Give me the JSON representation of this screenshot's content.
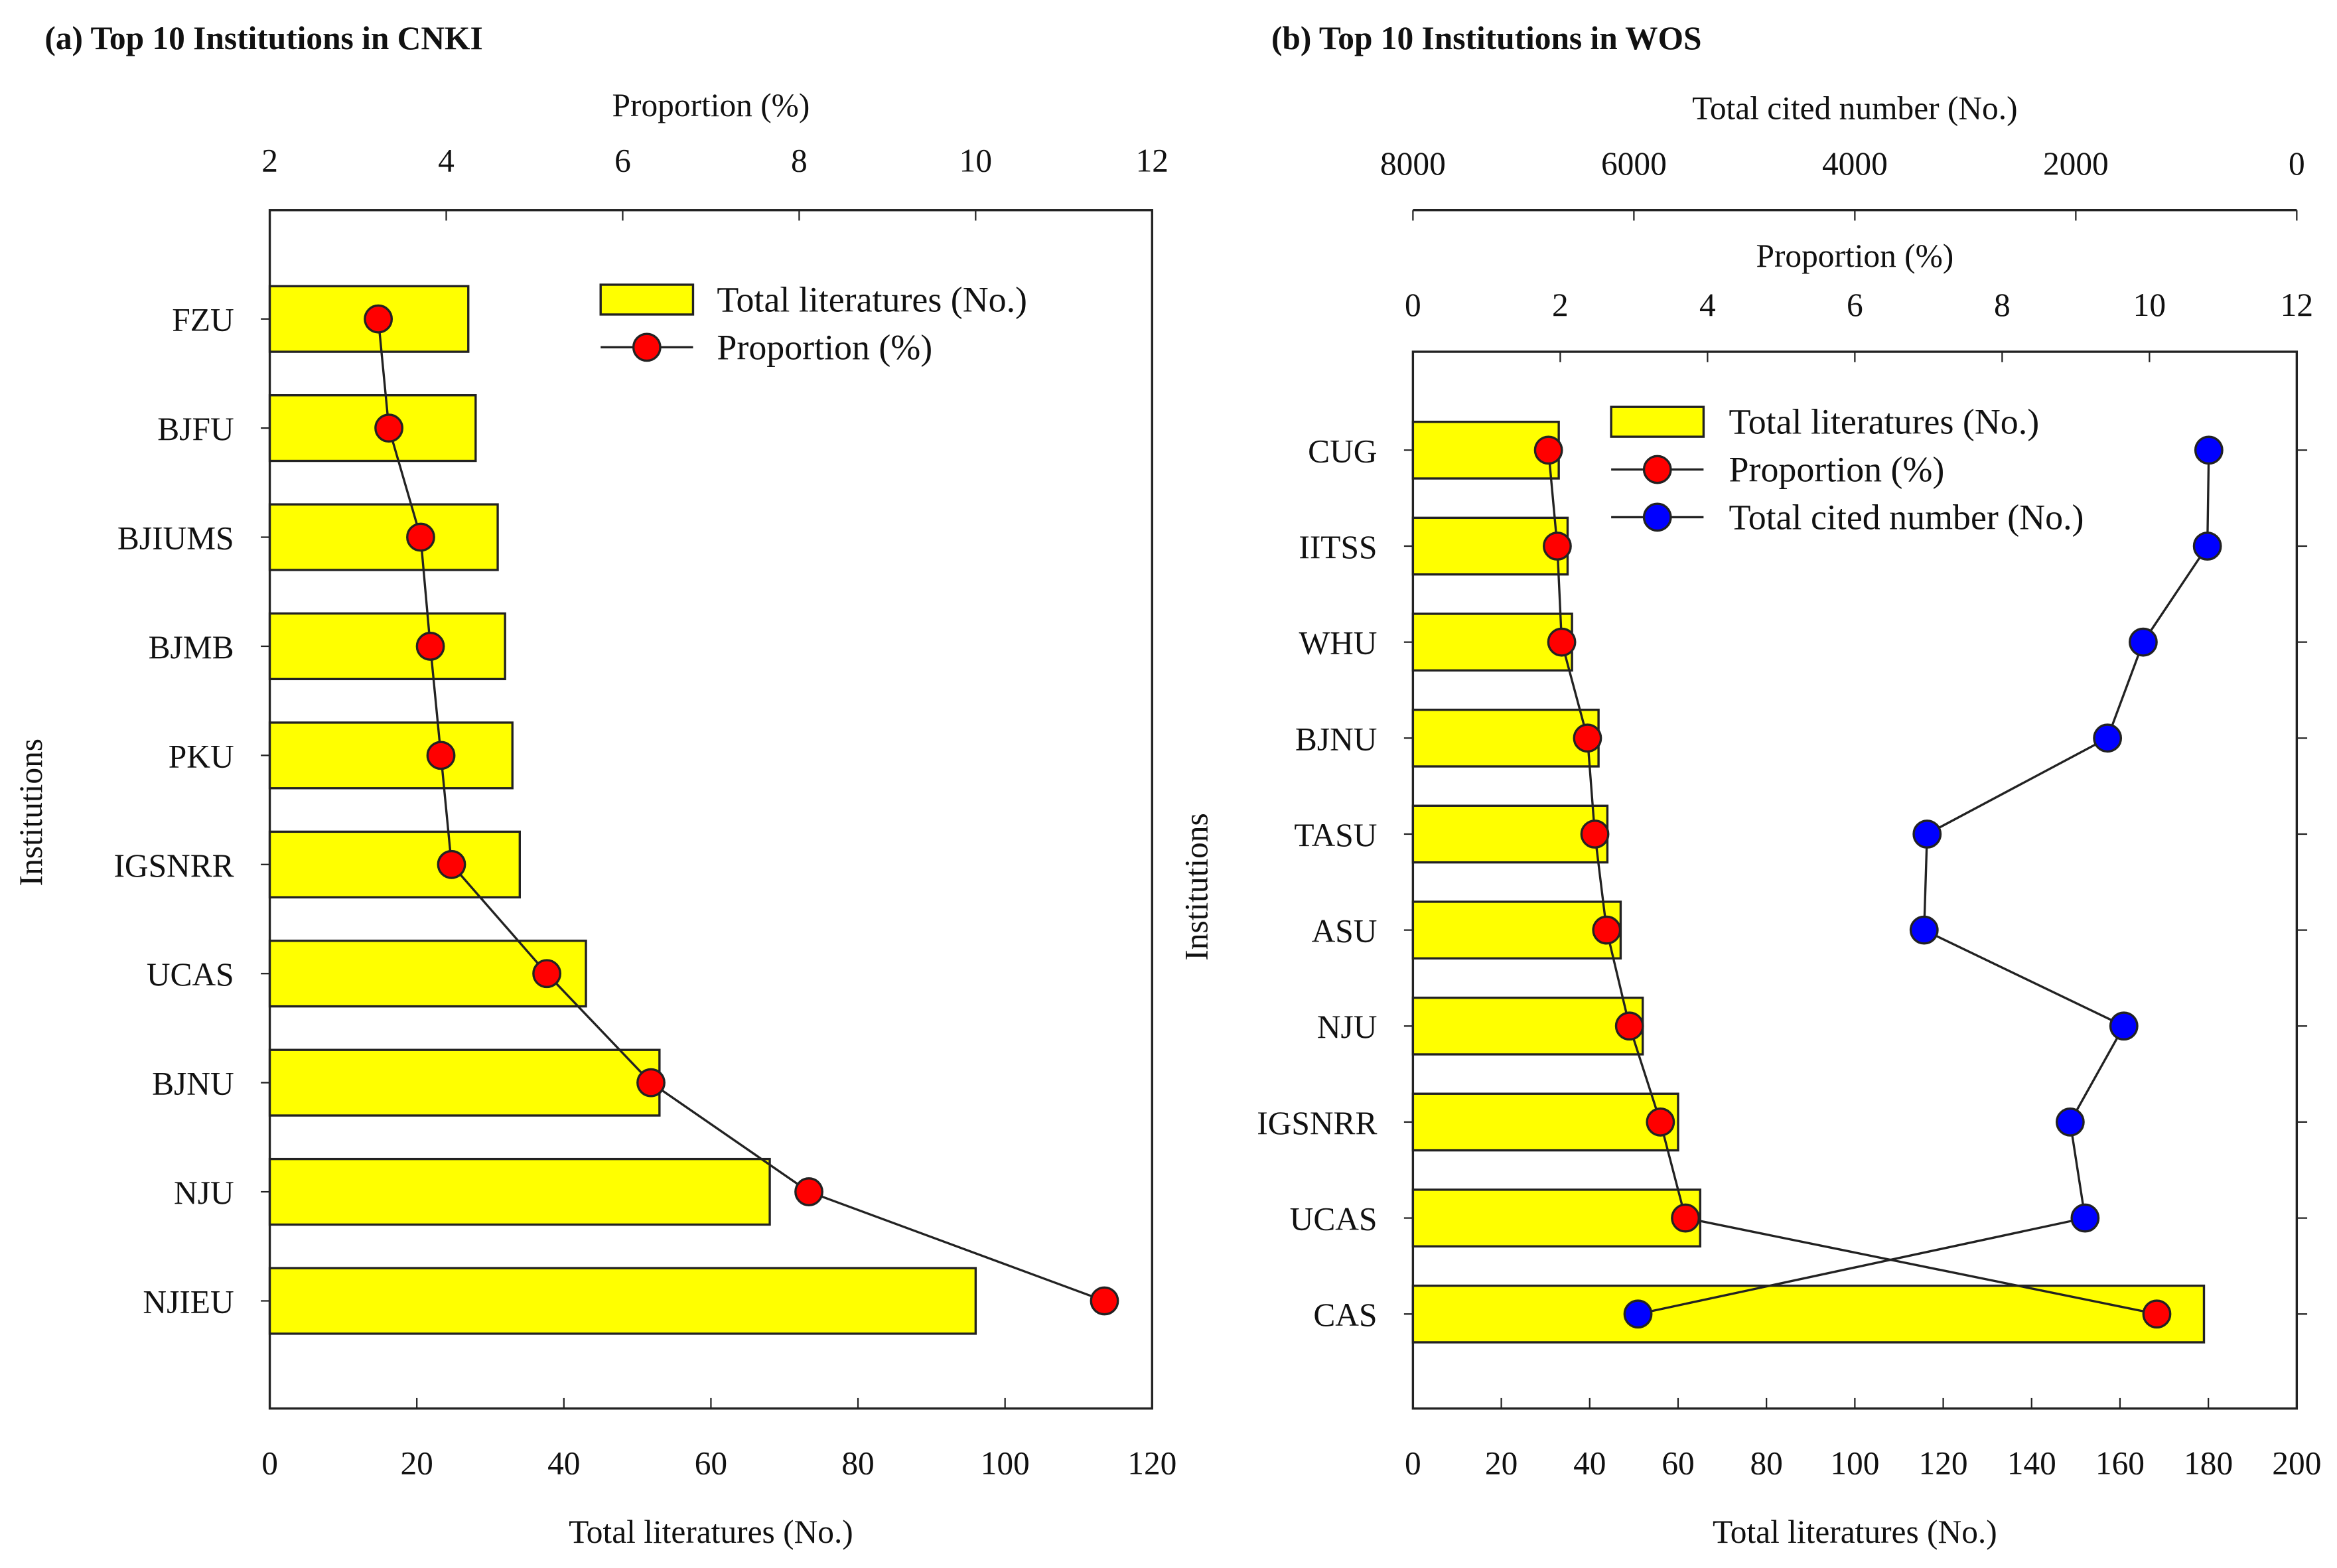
{
  "chart_data": [
    {
      "type": "bar",
      "title": "(a) Top 10 Institutions in CNKI",
      "ylabel": "Institutions",
      "xlabel": "Total literatures (No.)",
      "xlim": [
        0,
        120
      ],
      "xticks": [
        0,
        20,
        40,
        60,
        80,
        100,
        120
      ],
      "top_axis": {
        "label": "Proportion (%)",
        "lim": [
          2,
          12
        ],
        "ticks": [
          2,
          4,
          6,
          8,
          10,
          12
        ]
      },
      "categories": [
        "FZU",
        "BJFU",
        "BJIUMS",
        "BJMB",
        "PKU",
        "IGSNRR",
        "UCAS",
        "BJNU",
        "NJU",
        "NJIEU"
      ],
      "series": [
        {
          "name": "Total literatures (No.)",
          "type": "bar",
          "color": "#ffff00",
          "values": [
            27,
            28,
            31,
            32,
            33,
            34,
            43,
            53,
            68,
            96
          ]
        },
        {
          "name": "Proportion (%)",
          "type": "line",
          "axis": "top",
          "color": "#ff0000",
          "values": [
            3.23,
            3.35,
            3.71,
            3.82,
            3.94,
            4.06,
            5.14,
            6.32,
            8.11,
            11.46
          ]
        }
      ],
      "legend": "top-right"
    },
    {
      "type": "bar",
      "title": "(b) Top 10 Institutions in WOS",
      "ylabel": "Institutions",
      "xlabel": "Total literatures (No.)",
      "xlim": [
        0,
        200
      ],
      "xticks": [
        0,
        20,
        40,
        60,
        80,
        100,
        120,
        140,
        160,
        180,
        200
      ],
      "top_axis": {
        "label": "Proportion (%)",
        "lim": [
          0,
          12
        ],
        "ticks": [
          0,
          2,
          4,
          6,
          8,
          10,
          12
        ]
      },
      "top_axis2": {
        "label": "Total cited number (No.)",
        "lim": [
          8000,
          0
        ],
        "ticks": [
          8000,
          6000,
          4000,
          2000,
          0
        ]
      },
      "categories": [
        "CUG",
        "IITSS",
        "WHU",
        "BJNU",
        "TASU",
        "ASU",
        "NJU",
        "IGSNRR",
        "UCAS",
        "CAS"
      ],
      "series": [
        {
          "name": "Total literatures (No.)",
          "type": "bar",
          "color": "#ffff00",
          "values": [
            33,
            35,
            36,
            42,
            44,
            47,
            52,
            60,
            65,
            179
          ]
        },
        {
          "name": "Proportion (%)",
          "type": "line",
          "axis": "top",
          "color": "#ff0000",
          "values": [
            1.84,
            1.96,
            2.02,
            2.37,
            2.47,
            2.63,
            2.94,
            3.36,
            3.7,
            10.1
          ]
        },
        {
          "name": "Total cited number (No.)",
          "type": "line",
          "axis": "top2",
          "color": "#0000ff",
          "values": [
            796,
            809,
            1390,
            1713,
            3346,
            3373,
            1565,
            2051,
            1916,
            5963
          ]
        }
      ],
      "legend": "top-right"
    }
  ]
}
